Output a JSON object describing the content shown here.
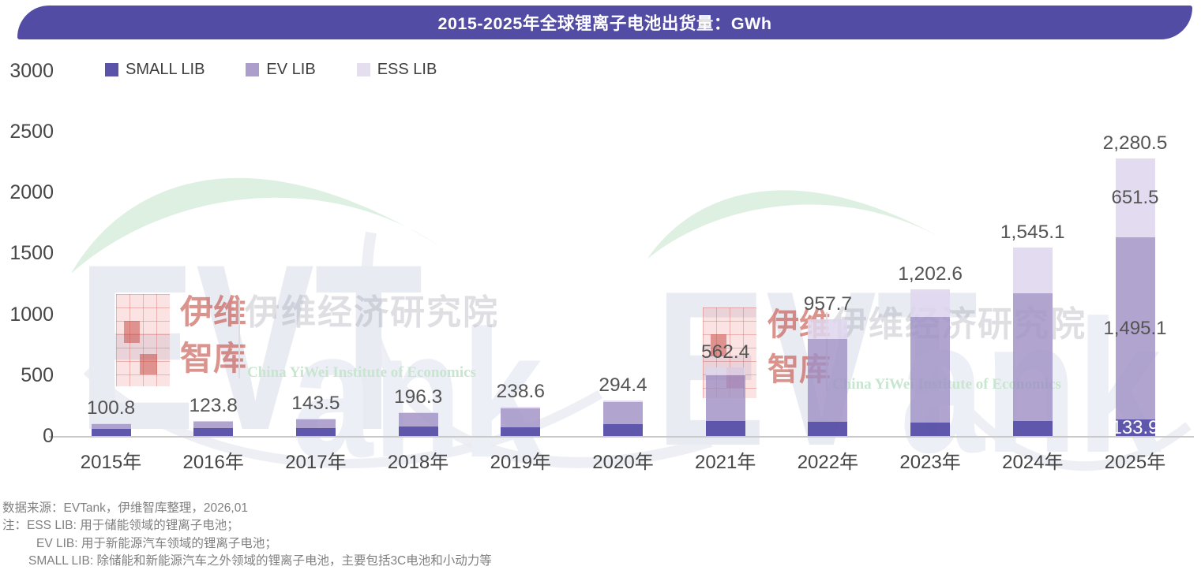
{
  "banner": {
    "title": "2015-2025年全球锂离子电池出货量：GWh",
    "color": "#534CA4"
  },
  "legend": {
    "items": [
      {
        "label": "SMALL LIB",
        "color": "#5A53A9"
      },
      {
        "label": "EV LIB",
        "color": "#AC9DCA"
      },
      {
        "label": "ESS LIB",
        "color": "#E4DEEE"
      }
    ]
  },
  "chart_data": {
    "type": "bar",
    "stacked": true,
    "title": "2015-2025年全球锂离子电池出货量：GWh",
    "unit": "GWh",
    "categories": [
      "2015年",
      "2016年",
      "2017年",
      "2018年",
      "2019年",
      "2020年",
      "2021年",
      "2022年",
      "2023年",
      "2024年",
      "2025年"
    ],
    "series": [
      {
        "name": "SMALL LIB",
        "color": "#5A53A9",
        "fill": "rgba(86,78,167,0.95)",
        "values": [
          58.0,
          62.0,
          64.0,
          76.0,
          73.0,
          98.0,
          125.1,
          113.7,
          113.2,
          124.1,
          133.9
        ]
      },
      {
        "name": "EV LIB",
        "color": "#AC9DCA",
        "fill": "rgba(158,142,196,0.80)",
        "values": [
          41.0,
          58.0,
          74.0,
          112.0,
          155.0,
          180.0,
          371.0,
          684.2,
          865.2,
          1051.2,
          1495.1
        ]
      },
      {
        "name": "ESS LIB",
        "color": "#E4DEEE",
        "fill": "rgba(222,214,237,0.85)",
        "values": [
          1.8,
          3.8,
          5.5,
          8.3,
          10.6,
          16.4,
          66.3,
          159.8,
          224.2,
          369.8,
          651.5
        ]
      }
    ],
    "totals": [
      100.8,
      123.8,
      143.5,
      196.3,
      238.6,
      294.4,
      562.4,
      957.7,
      1202.6,
      1545.1,
      2280.5
    ],
    "total_labels": [
      "100.8",
      "123.8",
      "143.5",
      "196.3",
      "238.6",
      "294.4",
      "562.4",
      "957.7",
      "1,202.6",
      "1,545.1",
      "2,280.5"
    ],
    "segment_labels_2025": {
      "small": "133.9",
      "ev": "1,495.1",
      "ess": "651.5"
    },
    "y_axis": {
      "ticks": [
        0,
        500,
        1000,
        1500,
        2000,
        2500,
        3000
      ],
      "max": 3000,
      "label": ""
    },
    "grid": false,
    "legend_position": "top-left"
  },
  "watermark": {
    "evt": "EVT",
    "ank": "ank",
    "yiwei": "伊维",
    "zhiku": "智库",
    "institute_cn": "伊维经济研究院",
    "institute_en": "China YiWei Institute of Economics",
    "crescent_color": "#DDF0E2"
  },
  "footer": {
    "lines": [
      "数据来源：EVTank，伊维智库整理，2026,01",
      "注：ESS LIB: 用于储能领域的锂离子电池；",
      "EV LIB: 用于新能源汽车领域的锂离子电池；",
      "SMALL LIB: 除储能和新能源汽车之外领域的锂离子电池，主要包括3C电池和小动力等"
    ]
  }
}
